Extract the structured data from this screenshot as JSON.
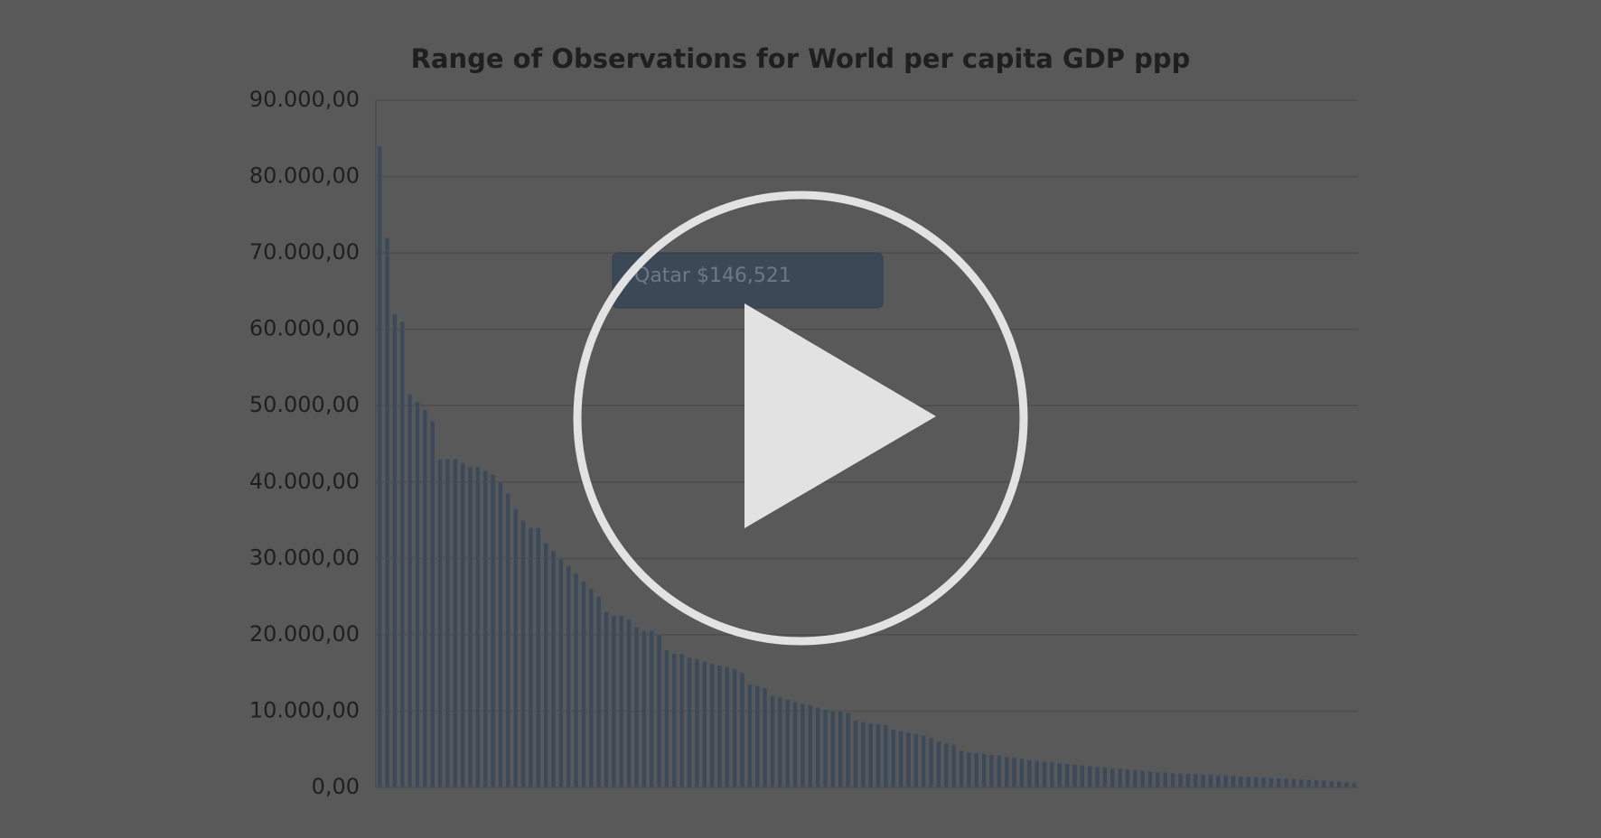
{
  "chart_data": {
    "type": "bar",
    "title": "Range of Observations for World per capita GDP ppp",
    "annotation": "Qatar $146,521",
    "values": [
      84000,
      72000,
      62000,
      61000,
      51500,
      50500,
      49500,
      48000,
      43000,
      43000,
      43000,
      42500,
      42000,
      42000,
      41500,
      41000,
      40000,
      38500,
      36500,
      35000,
      34000,
      34000,
      32000,
      31000,
      30000,
      29000,
      28000,
      27000,
      26000,
      25000,
      23000,
      22500,
      22500,
      22000,
      21000,
      20500,
      20500,
      20000,
      18000,
      17500,
      17500,
      17000,
      16800,
      16500,
      16200,
      16000,
      15800,
      15500,
      15000,
      13500,
      13300,
      13000,
      12000,
      11800,
      11500,
      11200,
      11000,
      10800,
      10500,
      10200,
      10000,
      10000,
      9800,
      8800,
      8600,
      8400,
      8300,
      8200,
      7600,
      7400,
      7200,
      7000,
      6800,
      6500,
      6000,
      5800,
      5600,
      4800,
      4600,
      4500,
      4400,
      4300,
      4200,
      4000,
      3900,
      3800,
      3600,
      3500,
      3400,
      3300,
      3200,
      3100,
      3000,
      2900,
      2800,
      2700,
      2600,
      2500,
      2450,
      2400,
      2300,
      2200,
      2100,
      2000,
      1950,
      1900,
      1850,
      1800,
      1750,
      1700,
      1650,
      1600,
      1550,
      1500,
      1450,
      1400,
      1350,
      1300,
      1250,
      1200,
      1150,
      1100,
      1050,
      1000,
      950,
      900,
      850,
      800,
      700,
      600
    ],
    "color": "#3e4957",
    "ylim": [
      0,
      90000
    ],
    "yticks": [
      {
        "value": 0,
        "label": "0,00"
      },
      {
        "value": 10000,
        "label": "10.000,00"
      },
      {
        "value": 20000,
        "label": "20.000,00"
      },
      {
        "value": 30000,
        "label": "30.000,00"
      },
      {
        "value": 40000,
        "label": "40.000,00"
      },
      {
        "value": 50000,
        "label": "50.000,00"
      },
      {
        "value": 60000,
        "label": "60.000,00"
      },
      {
        "value": 70000,
        "label": "70.000,00"
      },
      {
        "value": 80000,
        "label": "80.000,00"
      },
      {
        "value": 90000,
        "label": "90.000,00"
      }
    ],
    "grid": true
  }
}
